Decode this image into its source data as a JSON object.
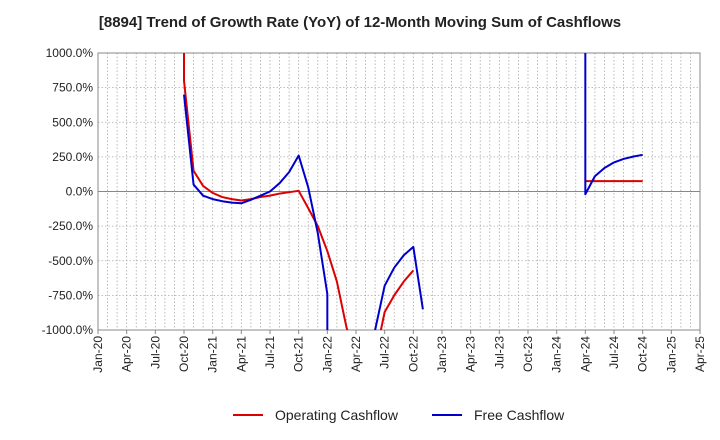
{
  "chart_data": {
    "type": "line",
    "title": "[8894]  Trend of Growth Rate (YoY) of 12-Month Moving Sum of Cashflows",
    "xlabel": "",
    "ylabel": "",
    "ylim": [
      -1000,
      1000
    ],
    "yticks": [
      1000,
      750,
      500,
      250,
      0,
      -250,
      -500,
      -750,
      -1000
    ],
    "ytick_labels": [
      "1000.0%",
      "750.0%",
      "500.0%",
      "250.0%",
      "0.0%",
      "-250.0%",
      "-500.0%",
      "-750.0%",
      "-1000.0%"
    ],
    "xticks": [
      "2020-01",
      "2020-04",
      "2020-07",
      "2020-10",
      "2021-01",
      "2021-04",
      "2021-07",
      "2021-10",
      "2022-01",
      "2022-04",
      "2022-07",
      "2022-10",
      "2023-01",
      "2023-04",
      "2023-07",
      "2023-10",
      "2024-01",
      "2024-04",
      "2024-07",
      "2024-10",
      "2025-01",
      "2025-04"
    ],
    "xtick_labels": [
      "Jan-20",
      "Apr-20",
      "Jul-20",
      "Oct-20",
      "Jan-21",
      "Apr-21",
      "Jul-21",
      "Oct-21",
      "Jan-22",
      "Apr-22",
      "Jul-22",
      "Oct-22",
      "Jan-23",
      "Apr-23",
      "Jul-23",
      "Oct-23",
      "Jan-24",
      "Apr-24",
      "Jul-24",
      "Oct-24",
      "Jan-25",
      "Apr-25"
    ],
    "xlim": [
      "2020-01",
      "2025-04"
    ],
    "grid": true,
    "legend": "bottom",
    "series": [
      {
        "name": "Operating Cashflow",
        "color": "#dd0000",
        "segments": [
          [
            {
              "x": "2020-10",
              "y": 1200
            },
            {
              "x": "2020-10",
              "y": 800
            },
            {
              "x": "2020-11",
              "y": 150
            },
            {
              "x": "2020-12",
              "y": 40
            },
            {
              "x": "2021-01",
              "y": -10
            },
            {
              "x": "2021-02",
              "y": -40
            },
            {
              "x": "2021-03",
              "y": -55
            },
            {
              "x": "2021-04",
              "y": -65
            },
            {
              "x": "2021-05",
              "y": -55
            },
            {
              "x": "2021-06",
              "y": -40
            },
            {
              "x": "2021-07",
              "y": -30
            },
            {
              "x": "2021-08",
              "y": -15
            },
            {
              "x": "2021-09",
              "y": -5
            },
            {
              "x": "2021-10",
              "y": 5
            },
            {
              "x": "2021-11",
              "y": -120
            },
            {
              "x": "2021-12",
              "y": -250
            },
            {
              "x": "2022-01",
              "y": -430
            },
            {
              "x": "2022-02",
              "y": -650
            },
            {
              "x": "2022-03",
              "y": -980
            },
            {
              "x": "2022-04",
              "y": -1200
            }
          ],
          [
            {
              "x": "2022-06",
              "y": -1200
            },
            {
              "x": "2022-07",
              "y": -870
            },
            {
              "x": "2022-08",
              "y": -750
            },
            {
              "x": "2022-09",
              "y": -650
            },
            {
              "x": "2022-10",
              "y": -570
            }
          ],
          [
            {
              "x": "2024-04",
              "y": 75
            },
            {
              "x": "2024-05",
              "y": 75
            },
            {
              "x": "2024-06",
              "y": 75
            },
            {
              "x": "2024-07",
              "y": 75
            },
            {
              "x": "2024-08",
              "y": 75
            },
            {
              "x": "2024-09",
              "y": 75
            },
            {
              "x": "2024-10",
              "y": 75
            }
          ]
        ]
      },
      {
        "name": "Free Cashflow",
        "color": "#0000cc",
        "segments": [
          [
            {
              "x": "2020-10",
              "y": 700
            },
            {
              "x": "2020-11",
              "y": 50
            },
            {
              "x": "2020-12",
              "y": -30
            },
            {
              "x": "2021-01",
              "y": -55
            },
            {
              "x": "2021-02",
              "y": -70
            },
            {
              "x": "2021-03",
              "y": -80
            },
            {
              "x": "2021-04",
              "y": -85
            },
            {
              "x": "2021-05",
              "y": -60
            },
            {
              "x": "2021-06",
              "y": -30
            },
            {
              "x": "2021-07",
              "y": 0
            },
            {
              "x": "2021-08",
              "y": 60
            },
            {
              "x": "2021-09",
              "y": 140
            },
            {
              "x": "2021-10",
              "y": 260
            },
            {
              "x": "2021-11",
              "y": 30
            },
            {
              "x": "2021-12",
              "y": -300
            },
            {
              "x": "2022-01",
              "y": -740
            },
            {
              "x": "2022-01",
              "y": -1200
            }
          ],
          [
            {
              "x": "2022-06",
              "y": -1200
            },
            {
              "x": "2022-06",
              "y": -1000
            },
            {
              "x": "2022-07",
              "y": -680
            },
            {
              "x": "2022-08",
              "y": -550
            },
            {
              "x": "2022-09",
              "y": -460
            },
            {
              "x": "2022-10",
              "y": -400
            },
            {
              "x": "2022-11",
              "y": -850
            }
          ],
          [
            {
              "x": "2024-04",
              "y": 1200
            },
            {
              "x": "2024-04",
              "y": -20
            },
            {
              "x": "2024-05",
              "y": 110
            },
            {
              "x": "2024-06",
              "y": 170
            },
            {
              "x": "2024-07",
              "y": 210
            },
            {
              "x": "2024-08",
              "y": 235
            },
            {
              "x": "2024-09",
              "y": 252
            },
            {
              "x": "2024-10",
              "y": 265
            }
          ]
        ]
      }
    ]
  }
}
